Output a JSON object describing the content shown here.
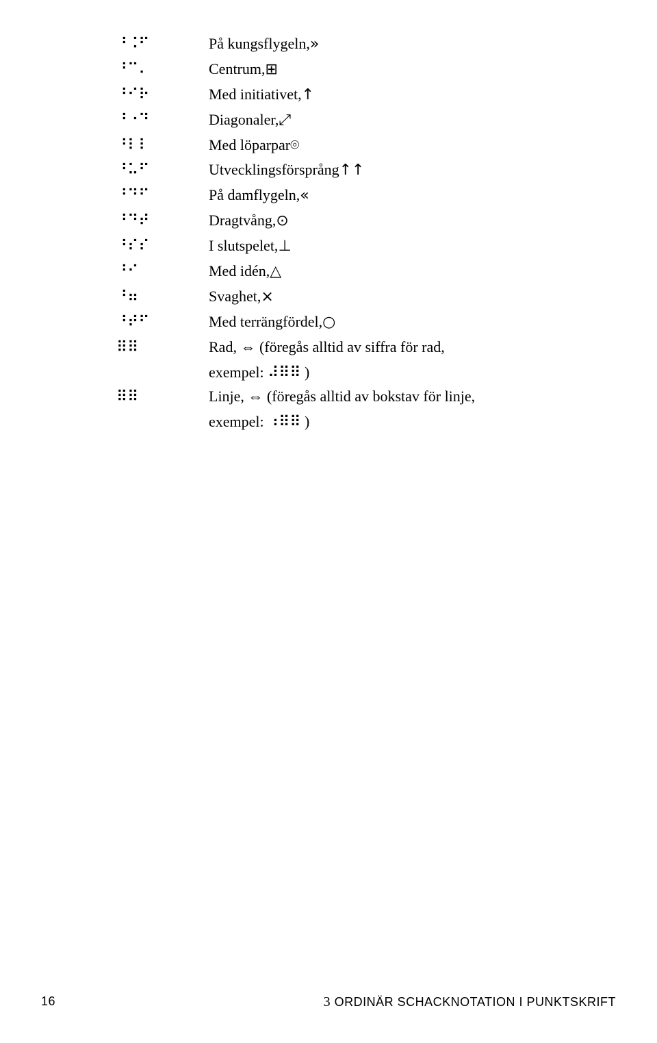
{
  "rows": [
    {
      "braille": "⠘⠨⠋",
      "term": "På kungsflygeln, ",
      "symbol": "»"
    },
    {
      "braille": "⠘⠉⠄",
      "term": "Centrum, ",
      "symbol": "⊞"
    },
    {
      "braille": "⠘⠊⠗",
      "term": "Med initiativet, ",
      "symbol": "↑"
    },
    {
      "braille": "⠘⠐⠙",
      "term": "Diagonaler, ",
      "symbol": "⤢"
    },
    {
      "braille": "⠘⠇⠇",
      "term": "Med löparpar ",
      "symbol": "⌾"
    },
    {
      "braille": "⠘⠥⠋",
      "term": "Utvecklingsförsprång ",
      "symbol": "↑↑"
    },
    {
      "braille": "⠘⠙⠋",
      "term": "På damflygeln, ",
      "symbol": "«"
    },
    {
      "braille": "⠘⠙⠞",
      "term": "Dragtvång, ",
      "symbol": "⊙"
    },
    {
      "braille": "⠘⠎⠎",
      "term": "I slutspelet, ",
      "symbol": "⊥"
    },
    {
      "braille": "⠘⠊",
      "term": "Med idén, ",
      "symbol": "△"
    },
    {
      "braille": "⠘⠶",
      "term": "Svaghet, ",
      "symbol": "×"
    },
    {
      "braille": "⠘⠞⠋",
      "term": "Med terrängfördel, ",
      "symbol": "○"
    },
    {
      "braille": "⠿⠿",
      "term": "Rad, ⇔  (föregås alltid av siffra för rad,",
      "symbol": ""
    },
    {
      "braille": "",
      "term": "exempel: ⠼⠿⠿ )",
      "symbol": "",
      "indent": true
    },
    {
      "braille": "⠿⠿",
      "term": "Linje, ⇔ (föregås alltid av bokstav för linje,",
      "symbol": ""
    },
    {
      "braille": "",
      "term": "exempel: ⠰⠿⠿ )",
      "symbol": "",
      "indent": true
    }
  ],
  "footer": {
    "page": "16",
    "chapter_num": "3",
    "chapter_title": "ORDINÄR SCHACKNOTATION I PUNKTSKRIFT"
  }
}
